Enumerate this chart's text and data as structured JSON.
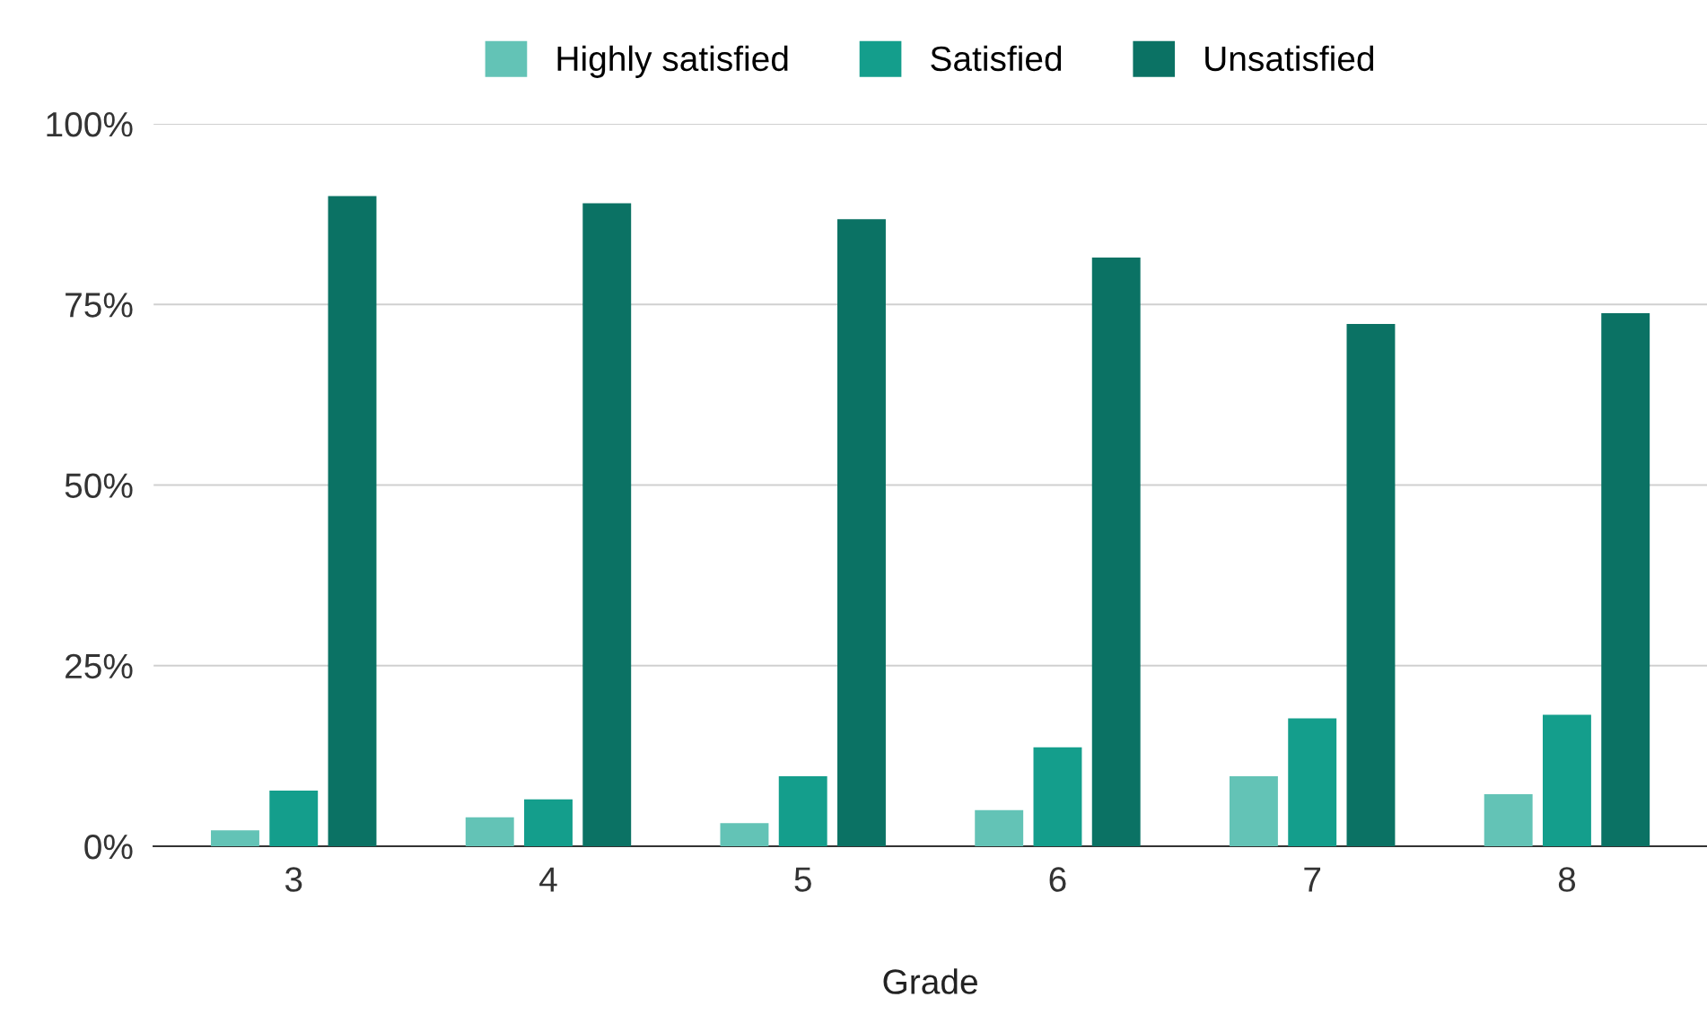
{
  "chart_data": {
    "type": "bar",
    "xlabel": "Grade",
    "categories": [
      "3",
      "4",
      "5",
      "6",
      "7",
      "8"
    ],
    "series": [
      {
        "name": "Highly satisfied",
        "color": "#63c3b6",
        "values": [
          2.2,
          4.0,
          3.2,
          5.0,
          9.7,
          7.2
        ]
      },
      {
        "name": "Satisfied",
        "color": "#149e8c",
        "values": [
          7.7,
          6.5,
          9.7,
          13.7,
          17.7,
          18.2
        ]
      },
      {
        "name": "Unsatisfied",
        "color": "#0b7264",
        "values": [
          90.0,
          89.0,
          86.8,
          81.5,
          72.3,
          73.8
        ]
      }
    ],
    "ylim": [
      0,
      100
    ],
    "yticks": [
      {
        "value": 0,
        "label": "0%"
      },
      {
        "value": 25,
        "label": "25%"
      },
      {
        "value": 50,
        "label": "50%"
      },
      {
        "value": 75,
        "label": "75%"
      },
      {
        "value": 100,
        "label": "100%"
      }
    ],
    "grid": "y",
    "legend": "top"
  }
}
